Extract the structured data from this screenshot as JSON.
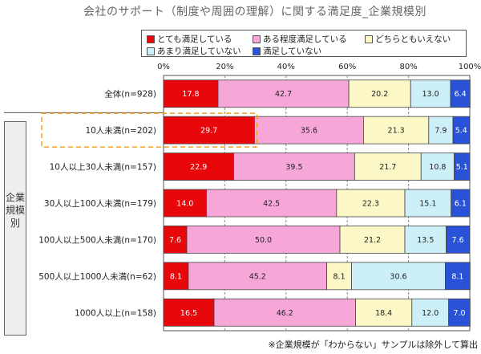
{
  "title": "会社のサポート（制度や周囲の理解）に関する満足度_企業規模別",
  "group_label": "企業規模別",
  "footnote": "※企業規模が「わからない」サンプルは除外して算出",
  "chart_data": {
    "type": "bar",
    "orientation": "horizontal",
    "stacked": true,
    "percent_scale": true,
    "xlim": [
      0,
      100
    ],
    "x_ticks": [
      "0%",
      "20%",
      "40%",
      "60%",
      "80%",
      "100%"
    ],
    "grid": true,
    "legend_position": "top",
    "categories": [
      "全体(n=928)",
      "10人未満(n=202)",
      "10人以上30人未満(n=157)",
      "30人以上100人未満(n=179)",
      "100人以上500人未満(n=170)",
      "500人以上1000人未満(n=62)",
      "1000人以上(n=158)"
    ],
    "series": [
      {
        "name": "とても満足している",
        "color": "#e8070b",
        "text_color": "#ffffff",
        "values": [
          17.8,
          29.7,
          22.9,
          14.0,
          7.6,
          8.1,
          16.5
        ]
      },
      {
        "name": "ある程度満足している",
        "color": "#f7a6d8",
        "text_color": "#222222",
        "values": [
          42.7,
          35.6,
          39.5,
          42.5,
          50.0,
          45.2,
          46.2
        ]
      },
      {
        "name": "どちらともいえない",
        "color": "#fbf7c6",
        "text_color": "#222222",
        "values": [
          20.2,
          21.3,
          21.7,
          22.3,
          21.2,
          8.1,
          18.4
        ]
      },
      {
        "name": "あまり満足していない",
        "color": "#cdeff7",
        "text_color": "#222222",
        "values": [
          13.0,
          7.9,
          10.8,
          15.1,
          13.5,
          30.6,
          12.0
        ]
      },
      {
        "name": "満足していない",
        "color": "#2a52d6",
        "text_color": "#ffffff",
        "values": [
          6.4,
          5.4,
          5.1,
          6.1,
          7.6,
          8.1,
          7.0
        ]
      }
    ],
    "highlighted_category": "10人未満(n=202)",
    "highlight_color": "#f0a020"
  }
}
